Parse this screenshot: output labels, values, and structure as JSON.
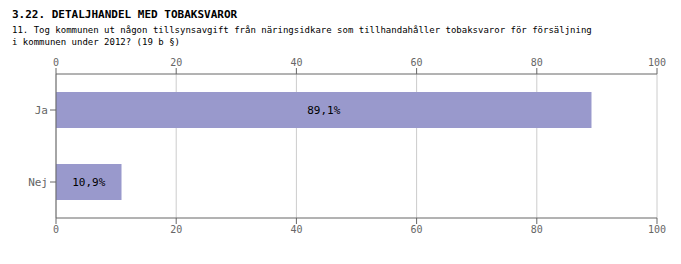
{
  "chart_data": {
    "type": "bar",
    "orientation": "horizontal",
    "title": "3.22. DETALJHANDEL MED TOBAKSVAROR",
    "subtitle": "11. Tog kommunen ut någon tillsynsavgift från näringsidkare som tillhandahåller tobaksvaror för försäljning\ni kommunen under 2012? (19 b §)",
    "categories": [
      "Nej",
      "Ja"
    ],
    "values": [
      10.9,
      89.1
    ],
    "value_labels": [
      "10,9%",
      "89,1%"
    ],
    "data_labels": true,
    "color": "#9999CC",
    "xlim": [
      0,
      100
    ],
    "xticks": [
      0,
      20,
      40,
      60,
      80,
      100
    ],
    "grid": true
  }
}
